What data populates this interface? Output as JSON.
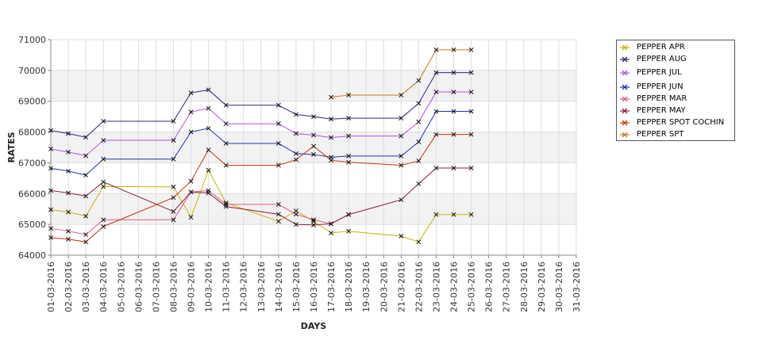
{
  "chart_data": {
    "type": "line",
    "title": "",
    "xlabel": "DAYS",
    "ylabel": "RATES",
    "ylim": [
      64000,
      71000
    ],
    "yticks": [
      "64000",
      "65000",
      "66000",
      "67000",
      "68000",
      "69000",
      "70000",
      "71000"
    ],
    "grid": true,
    "legend_position": "right",
    "categories": [
      "01-03-2016",
      "02-03-2016",
      "03-03-2016",
      "04-03-2016",
      "05-03-2016",
      "06-03-2016",
      "07-03-2016",
      "08-03-2016",
      "09-03-2016",
      "10-03-2016",
      "11-03-2016",
      "12-03-2016",
      "13-03-2016",
      "14-03-2016",
      "15-03-2016",
      "16-03-2016",
      "17-03-2016",
      "18-03-2016",
      "19-03-2016",
      "20-03-2016",
      "21-03-2016",
      "22-03-2016",
      "23-03-2016",
      "24-03-2016",
      "25-03-2016",
      "26-03-2016",
      "27-03-2016",
      "28-03-2016",
      "29-03-2016",
      "30-03-2016",
      "31-03-2016"
    ],
    "series": [
      {
        "name": "PEPPER APR",
        "color": "#c8b400",
        "points": [
          [
            0,
            65480
          ],
          [
            1,
            65400
          ],
          [
            2,
            65270
          ],
          [
            3,
            66230
          ],
          [
            7,
            66220
          ],
          [
            8,
            65230
          ],
          [
            9,
            66760
          ],
          [
            10,
            65700
          ],
          [
            13,
            65100
          ],
          [
            14,
            65440
          ],
          [
            15,
            65100
          ],
          [
            16,
            64720
          ],
          [
            17,
            64780
          ],
          [
            20,
            64620
          ],
          [
            21,
            64430
          ],
          [
            22,
            65320
          ],
          [
            23,
            65320
          ],
          [
            24,
            65320
          ]
        ]
      },
      {
        "name": "PEPPER AUG",
        "color": "#3c1e82",
        "points": [
          [
            0,
            68050
          ],
          [
            1,
            67950
          ],
          [
            2,
            67830
          ],
          [
            3,
            68350
          ],
          [
            7,
            68350
          ],
          [
            8,
            69270
          ],
          [
            9,
            69370
          ],
          [
            10,
            68870
          ],
          [
            13,
            68870
          ],
          [
            14,
            68570
          ],
          [
            15,
            68500
          ],
          [
            16,
            68420
          ],
          [
            17,
            68450
          ],
          [
            20,
            68450
          ],
          [
            21,
            68930
          ],
          [
            22,
            69930
          ],
          [
            23,
            69930
          ],
          [
            24,
            69930
          ]
        ]
      },
      {
        "name": "PEPPER JUL",
        "color": "#b450dc",
        "points": [
          [
            0,
            67450
          ],
          [
            1,
            67350
          ],
          [
            2,
            67230
          ],
          [
            3,
            67730
          ],
          [
            7,
            67730
          ],
          [
            8,
            68650
          ],
          [
            9,
            68770
          ],
          [
            10,
            68270
          ],
          [
            13,
            68270
          ],
          [
            14,
            67950
          ],
          [
            15,
            67900
          ],
          [
            16,
            67820
          ],
          [
            17,
            67870
          ],
          [
            20,
            67870
          ],
          [
            21,
            68330
          ],
          [
            22,
            69300
          ],
          [
            23,
            69300
          ],
          [
            24,
            69300
          ]
        ]
      },
      {
        "name": "PEPPER JUN",
        "color": "#1e32b4",
        "points": [
          [
            0,
            66820
          ],
          [
            1,
            66730
          ],
          [
            2,
            66600
          ],
          [
            3,
            67120
          ],
          [
            7,
            67120
          ],
          [
            8,
            68000
          ],
          [
            9,
            68120
          ],
          [
            10,
            67630
          ],
          [
            13,
            67630
          ],
          [
            14,
            67300
          ],
          [
            15,
            67270
          ],
          [
            16,
            67180
          ],
          [
            17,
            67220
          ],
          [
            20,
            67220
          ],
          [
            21,
            67680
          ],
          [
            22,
            68670
          ],
          [
            23,
            68670
          ],
          [
            24,
            68670
          ]
        ]
      },
      {
        "name": "PEPPER MAR",
        "color": "#dc5a8c",
        "points": [
          [
            0,
            64870
          ],
          [
            1,
            64780
          ],
          [
            2,
            64670
          ],
          [
            3,
            65150
          ],
          [
            7,
            65150
          ],
          [
            8,
            66050
          ],
          [
            9,
            66100
          ],
          [
            10,
            65650
          ],
          [
            13,
            65650
          ],
          [
            14,
            65330
          ],
          [
            15,
            65150
          ],
          [
            16,
            65020
          ],
          [
            17,
            65320
          ]
        ]
      },
      {
        "name": "PEPPER MAY",
        "color": "#8c1e3c",
        "points": [
          [
            0,
            66100
          ],
          [
            1,
            66020
          ],
          [
            2,
            65920
          ],
          [
            3,
            66380
          ],
          [
            7,
            65420
          ],
          [
            8,
            66050
          ],
          [
            9,
            66020
          ],
          [
            10,
            65580
          ],
          [
            13,
            65330
          ],
          [
            14,
            65000
          ],
          [
            15,
            64980
          ],
          [
            16,
            65020
          ],
          [
            17,
            65320
          ],
          [
            20,
            65800
          ],
          [
            21,
            66320
          ],
          [
            22,
            66830
          ],
          [
            23,
            66830
          ],
          [
            24,
            66830
          ]
        ]
      },
      {
        "name": "PEPPER SPOT COCHIN",
        "color": "#c83214",
        "points": [
          [
            0,
            64570
          ],
          [
            1,
            64520
          ],
          [
            2,
            64430
          ],
          [
            3,
            64930
          ],
          [
            7,
            65870
          ],
          [
            8,
            66400
          ],
          [
            9,
            67420
          ],
          [
            10,
            66920
          ],
          [
            13,
            66920
          ],
          [
            14,
            67100
          ],
          [
            15,
            67540
          ],
          [
            16,
            67080
          ],
          [
            17,
            67020
          ],
          [
            20,
            66920
          ],
          [
            21,
            67060
          ],
          [
            22,
            67920
          ],
          [
            23,
            67920
          ],
          [
            24,
            67920
          ]
        ]
      },
      {
        "name": "PEPPER SPT",
        "color": "#c87814",
        "points": [
          [
            16,
            69130
          ],
          [
            17,
            69200
          ],
          [
            20,
            69200
          ],
          [
            21,
            69670
          ],
          [
            22,
            70670
          ],
          [
            23,
            70670
          ],
          [
            24,
            70670
          ]
        ]
      }
    ]
  }
}
